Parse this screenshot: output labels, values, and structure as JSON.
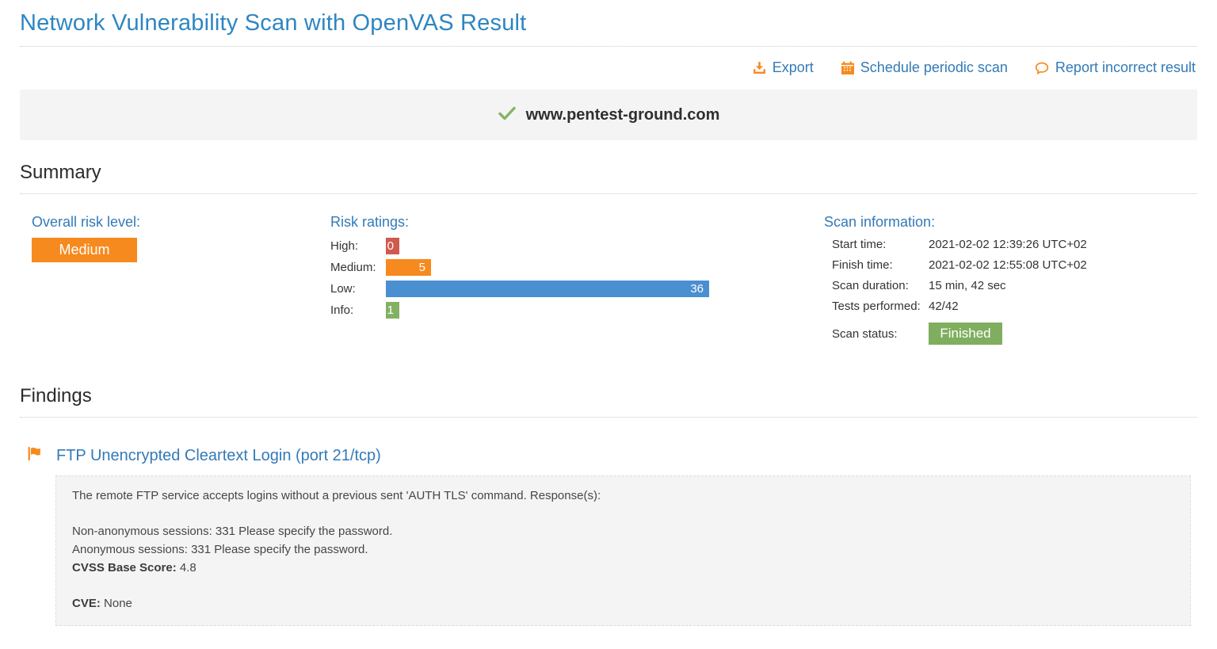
{
  "page": {
    "title": "Network Vulnerability Scan with OpenVAS Result"
  },
  "actions": [
    {
      "icon": "download-icon",
      "label": "Export"
    },
    {
      "icon": "calendar-icon",
      "label": "Schedule periodic scan"
    },
    {
      "icon": "comment-icon",
      "label": "Report incorrect result"
    }
  ],
  "target": {
    "domain": "www.pentest-ground.com",
    "status_icon": "check-icon"
  },
  "summary": {
    "heading": "Summary",
    "overall_risk": {
      "label": "Overall risk level:",
      "value": "Medium",
      "color": "#f78a1e"
    },
    "risk_ratings": {
      "heading": "Risk ratings:",
      "chart": {
        "type": "bar",
        "orientation": "horizontal",
        "max_value": 36,
        "items": [
          {
            "label": "High:",
            "value": 0,
            "color": "#cf5a4e"
          },
          {
            "label": "Medium:",
            "value": 5,
            "color": "#f78a1e"
          },
          {
            "label": "Low:",
            "value": 36,
            "color": "#4a8fd0"
          },
          {
            "label": "Info:",
            "value": 1,
            "color": "#83b163"
          }
        ]
      }
    },
    "scan_information": {
      "heading": "Scan information:",
      "rows": [
        {
          "label": "Start time:",
          "value": "2021-02-02 12:39:26 UTC+02"
        },
        {
          "label": "Finish time:",
          "value": "2021-02-02 12:55:08 UTC+02"
        },
        {
          "label": "Scan duration:",
          "value": "15 min, 42 sec"
        },
        {
          "label": "Tests performed:",
          "value": "42/42"
        }
      ],
      "status": {
        "label": "Scan status:",
        "value": "Finished",
        "color": "#7fae5f"
      }
    }
  },
  "findings": {
    "heading": "Findings",
    "items": [
      {
        "flag_icon": "flag-icon",
        "title": "FTP Unencrypted Cleartext Login (port 21/tcp)",
        "description": [
          [
            "The remote FTP service accepts logins without a previous sent 'AUTH TLS' command. Response(s):"
          ],
          [
            "Non-anonymous sessions: 331 Please specify the password.",
            "Anonymous sessions: 331 Please specify the password."
          ]
        ],
        "cvss": {
          "label": "CVSS Base Score:",
          "value": "4.8"
        },
        "cve": {
          "label": "CVE:",
          "value": "None"
        }
      }
    ]
  },
  "colors": {
    "title_blue": "#2e86c1",
    "link_blue": "#337ab7",
    "accent_orange": "#f78a1e",
    "check_green": "#85b36a",
    "high_red": "#cf5a4e",
    "low_blue": "#4a8fd0",
    "info_green": "#83b163",
    "finished_green": "#7fae5f"
  }
}
